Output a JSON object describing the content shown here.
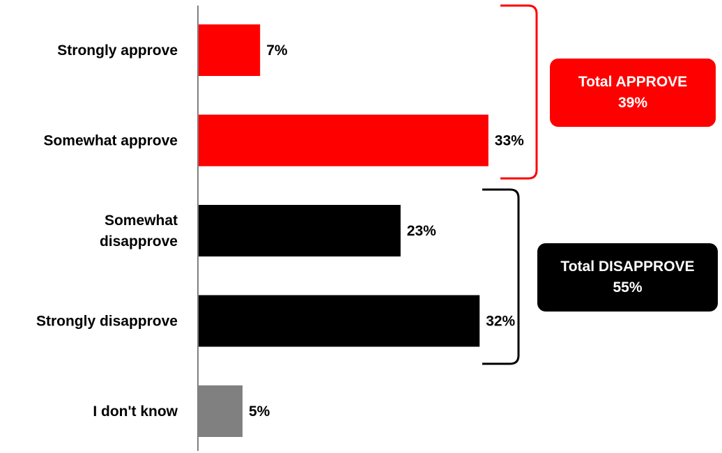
{
  "chart_data": {
    "type": "bar",
    "orientation": "horizontal",
    "categories": [
      [
        "Strongly approve"
      ],
      [
        "Somewhat approve"
      ],
      [
        "Somewhat",
        "disapprove"
      ],
      [
        "Strongly disapprove"
      ],
      [
        "I don't know"
      ]
    ],
    "values": [
      7,
      33,
      23,
      32,
      5
    ],
    "value_labels": [
      "7%",
      "33%",
      "23%",
      "32%",
      "5%"
    ],
    "bar_colors": [
      "#ff0000",
      "#ff0000",
      "#000000",
      "#000000",
      "#808080"
    ],
    "xlim": [
      0,
      33
    ],
    "grid": false,
    "groups": [
      {
        "label": "Total APPROVE",
        "value": "39%",
        "members": [
          0,
          1
        ],
        "color": "#ff0000"
      },
      {
        "label": "Total DISAPPROVE",
        "value": "55%",
        "members": [
          2,
          3
        ],
        "color": "#000000"
      }
    ]
  }
}
